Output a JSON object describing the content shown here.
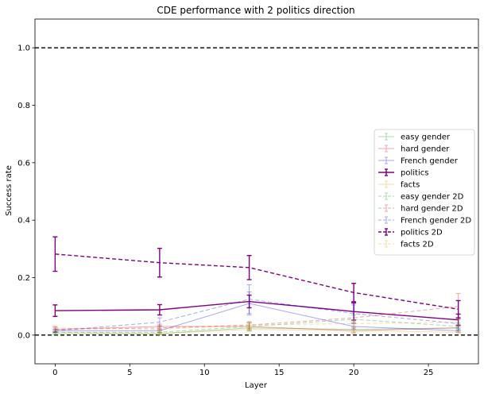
{
  "chart_data": {
    "type": "line",
    "title": "CDE performance with 2 politics direction",
    "xlabel": "Layer",
    "ylabel": "Success rate",
    "xlim": [
      -1.35,
      28.35
    ],
    "ylim": [
      -0.1,
      1.1
    ],
    "xticks": [
      0,
      5,
      10,
      15,
      20,
      25
    ],
    "yticks": [
      0.0,
      0.2,
      0.4,
      0.6,
      0.8,
      1.0
    ],
    "xtick_labels": [
      "0",
      "5",
      "10",
      "15",
      "20",
      "25"
    ],
    "ytick_labels": [
      "0.0",
      "0.2",
      "0.4",
      "0.6",
      "0.8",
      "1.0"
    ],
    "reference_lines": [
      0.0,
      1.0
    ],
    "legend_position": "center-right",
    "x": [
      0,
      7,
      13,
      20,
      27
    ],
    "series": [
      {
        "name": "easy gender",
        "color": "#2ca02c",
        "dashed": false,
        "alpha": 0.4,
        "width": 1,
        "values": [
          0.005,
          0.005,
          0.025,
          0.02,
          0.025
        ],
        "errors": [
          0.004,
          0.004,
          0.01,
          0.01,
          0.01
        ]
      },
      {
        "name": "hard gender",
        "color": "#d62728",
        "dashed": false,
        "alpha": 0.4,
        "width": 1,
        "values": [
          0.02,
          0.03,
          0.03,
          0.015,
          0.025
        ],
        "errors": [
          0.008,
          0.008,
          0.012,
          0.01,
          0.012
        ]
      },
      {
        "name": "French gender",
        "color": "#0000ff",
        "dashed": false,
        "alpha": 0.35,
        "width": 1,
        "values": [
          0.015,
          0.015,
          0.11,
          0.03,
          0.015
        ],
        "errors": [
          0.006,
          0.006,
          0.04,
          0.01,
          0.006
        ]
      },
      {
        "name": "politics",
        "color": "#800080",
        "dashed": false,
        "alpha": 1,
        "width": 1.4,
        "values": [
          0.085,
          0.088,
          0.117,
          0.082,
          0.053
        ],
        "errors": [
          0.02,
          0.018,
          0.022,
          0.03,
          0.02
        ]
      },
      {
        "name": "facts",
        "color": "#e8a000",
        "dashed": false,
        "alpha": 0.35,
        "width": 1,
        "values": [
          0.01,
          0.005,
          0.02,
          0.015,
          0.01
        ],
        "errors": [
          0.005,
          0.004,
          0.008,
          0.006,
          0.005
        ]
      },
      {
        "name": "easy gender 2D",
        "color": "#2ca02c",
        "dashed": true,
        "alpha": 0.4,
        "width": 1,
        "values": [
          0.01,
          0.01,
          0.03,
          0.055,
          0.03
        ],
        "errors": [
          0.005,
          0.005,
          0.012,
          0.015,
          0.012
        ]
      },
      {
        "name": "hard gender 2D",
        "color": "#d62728",
        "dashed": true,
        "alpha": 0.4,
        "width": 1,
        "values": [
          0.02,
          0.025,
          0.035,
          0.06,
          0.1
        ],
        "errors": [
          0.008,
          0.008,
          0.012,
          0.02,
          0.045
        ]
      },
      {
        "name": "French gender 2D",
        "color": "#0000ff",
        "dashed": true,
        "alpha": 0.35,
        "width": 1,
        "values": [
          0.015,
          0.045,
          0.125,
          0.075,
          0.04
        ],
        "errors": [
          0.006,
          0.015,
          0.05,
          0.03,
          0.015
        ]
      },
      {
        "name": "politics 2D",
        "color": "#800080",
        "dashed": true,
        "alpha": 1,
        "width": 1.4,
        "values": [
          0.282,
          0.252,
          0.235,
          0.148,
          0.09
        ],
        "errors": [
          0.06,
          0.05,
          0.042,
          0.032,
          0.03
        ]
      },
      {
        "name": "facts 2D",
        "color": "#e8a000",
        "dashed": true,
        "alpha": 0.35,
        "width": 1,
        "values": [
          0.025,
          0.02,
          0.035,
          0.04,
          0.045
        ],
        "errors": [
          0.008,
          0.008,
          0.01,
          0.012,
          0.012
        ]
      }
    ]
  }
}
